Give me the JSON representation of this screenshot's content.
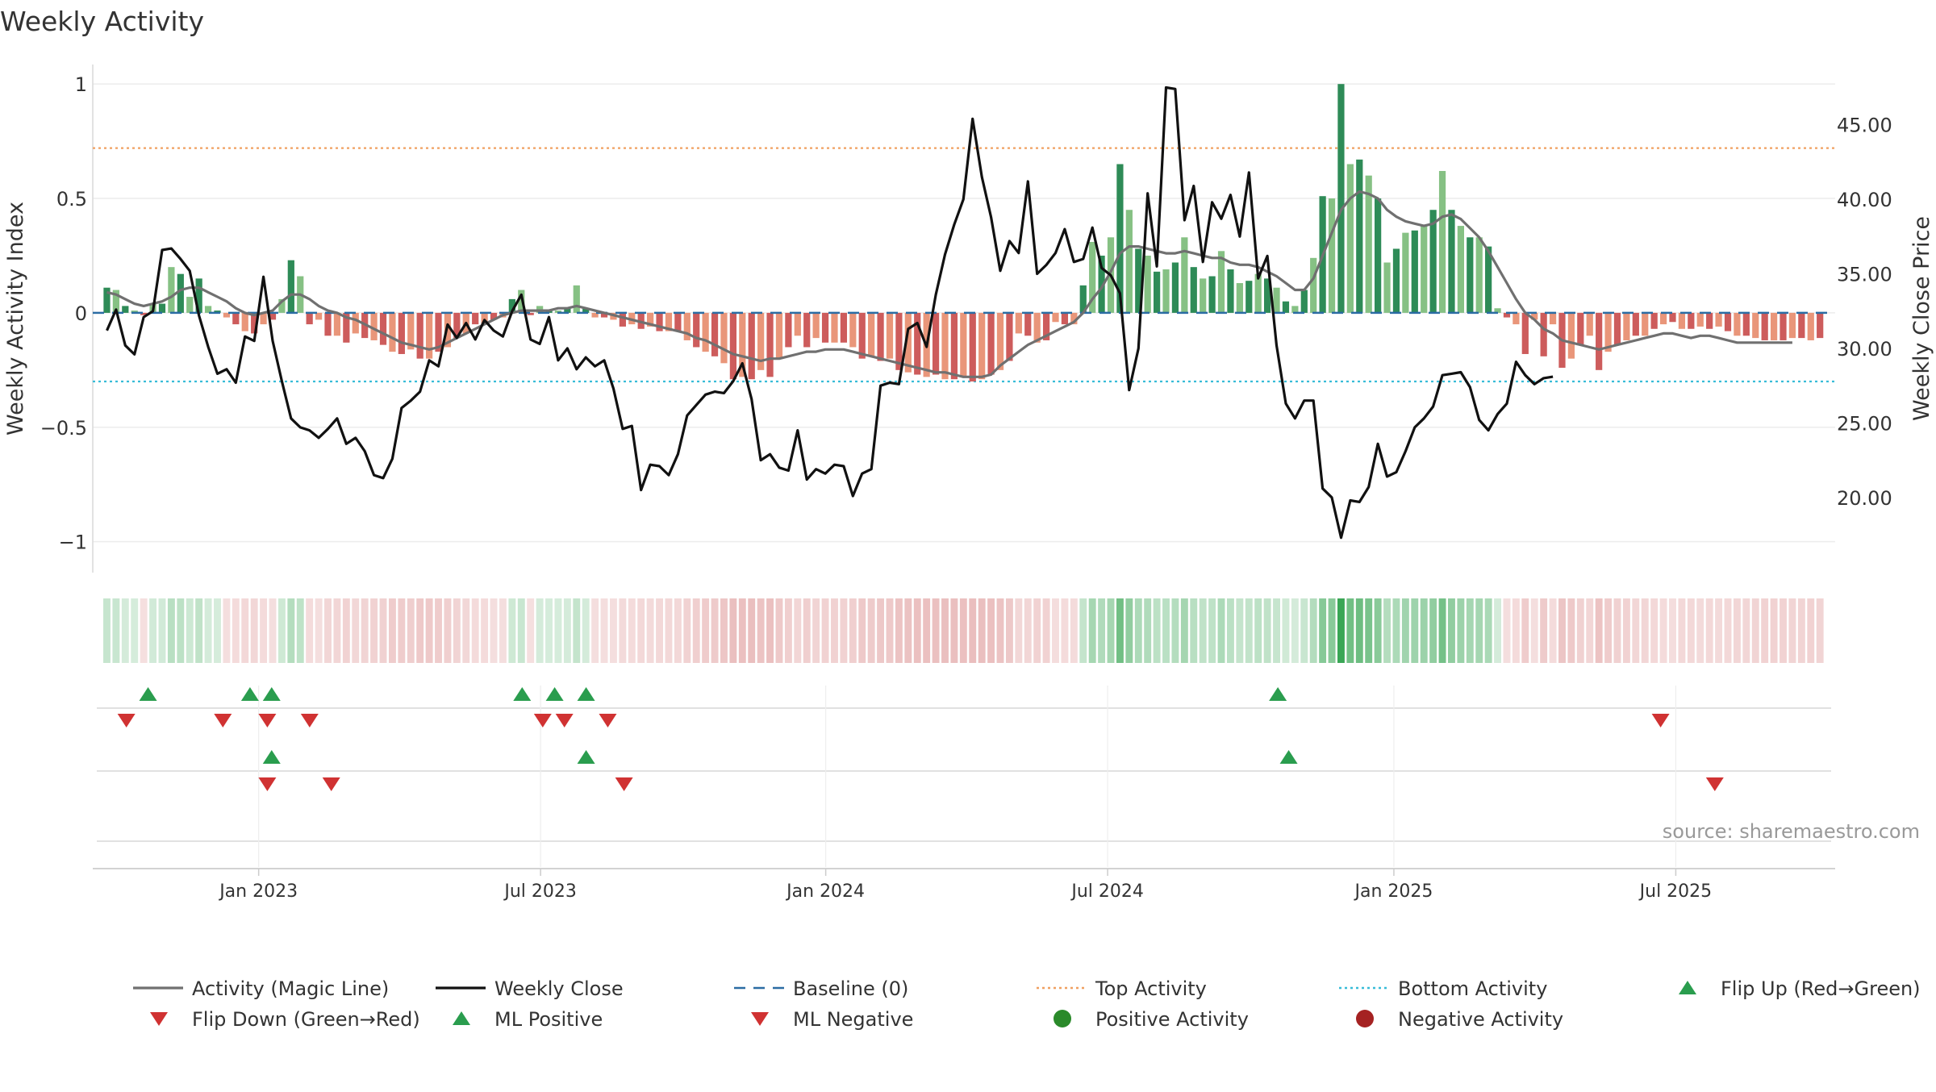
{
  "chart_data": {
    "type": "bar",
    "title": "Weekly Activity",
    "ylabel_left": "Weekly Activity Index",
    "ylabel_right": "Weekly Close Price",
    "source": "source: sharemaestro.com",
    "y_left_range": [
      -1.1,
      1.05
    ],
    "y_left_ticks": [
      1,
      0.5,
      0,
      -0.5,
      -1
    ],
    "y_left_tick_labels": [
      "1",
      "0.5",
      "0",
      "−0.5",
      "−1"
    ],
    "y_right_range": [
      15.5,
      48.5
    ],
    "y_right_ticks": [
      45,
      40,
      35,
      30,
      25,
      20
    ],
    "y_right_tick_labels": [
      "45.00",
      "40.00",
      "35.00",
      "30.00",
      "25.00",
      "20.00"
    ],
    "x_range_weeks": [
      -17.3,
      143.4
    ],
    "x_ticks": [
      {
        "label": "Jan 2023",
        "week": -2
      },
      {
        "label": "Jul 2023",
        "week": 24
      },
      {
        "label": "Jan 2024",
        "week": 50.3
      },
      {
        "label": "Jul 2024",
        "week": 76.3
      },
      {
        "label": "Jan 2025",
        "week": 102.7
      },
      {
        "label": "Jul 2025",
        "week": 128.7
      }
    ],
    "top_activity": 0.72,
    "bottom_activity": -0.3,
    "baseline": 0,
    "activity_values": [
      0.11,
      0.1,
      0.03,
      0.01,
      -0.01,
      0.04,
      0.04,
      0.2,
      0.17,
      0.07,
      0.15,
      0.03,
      0.01,
      -0.02,
      -0.05,
      -0.08,
      -0.09,
      -0.05,
      -0.03,
      0.06,
      0.23,
      0.16,
      -0.05,
      -0.03,
      -0.1,
      -0.1,
      -0.13,
      -0.09,
      -0.11,
      -0.12,
      -0.14,
      -0.17,
      -0.18,
      -0.16,
      -0.2,
      -0.2,
      -0.17,
      -0.15,
      -0.11,
      -0.09,
      -0.05,
      -0.05,
      -0.03,
      -0.02,
      0.06,
      0.1,
      -0.01,
      0.03,
      0.01,
      0.01,
      0.02,
      0.12,
      0.02,
      -0.02,
      -0.02,
      -0.03,
      -0.06,
      -0.05,
      -0.07,
      -0.06,
      -0.08,
      -0.08,
      -0.08,
      -0.12,
      -0.15,
      -0.17,
      -0.19,
      -0.22,
      -0.29,
      -0.28,
      -0.29,
      -0.25,
      -0.28,
      -0.2,
      -0.15,
      -0.1,
      -0.15,
      -0.11,
      -0.13,
      -0.13,
      -0.13,
      -0.15,
      -0.2,
      -0.19,
      -0.21,
      -0.2,
      -0.25,
      -0.26,
      -0.27,
      -0.28,
      -0.27,
      -0.29,
      -0.29,
      -0.28,
      -0.3,
      -0.29,
      -0.27,
      -0.25,
      -0.21,
      -0.09,
      -0.1,
      -0.13,
      -0.12,
      -0.04,
      -0.05,
      -0.05,
      0.12,
      0.31,
      0.25,
      0.33,
      0.65,
      0.45,
      0.28,
      0.25,
      0.18,
      0.19,
      0.22,
      0.33,
      0.2,
      0.15,
      0.16,
      0.27,
      0.19,
      0.13,
      0.14,
      0.17,
      0.15,
      0.11,
      0.05,
      0.03,
      0.1,
      0.24,
      0.51,
      0.5,
      1.0,
      0.65,
      0.67,
      0.6,
      0.5,
      0.22,
      0.28,
      0.35,
      0.36,
      0.38,
      0.45,
      0.62,
      0.45,
      0.38,
      0.33,
      0.33,
      0.29,
      0.02,
      -0.02,
      -0.05,
      -0.18,
      -0.03,
      -0.19,
      -0.05,
      -0.24,
      -0.2,
      -0.14,
      -0.1,
      -0.25,
      -0.17,
      -0.14,
      -0.12,
      -0.1,
      -0.1,
      -0.07,
      -0.05,
      -0.04,
      -0.07,
      -0.07,
      -0.06,
      -0.07,
      -0.06,
      -0.08,
      -0.1,
      -0.1,
      -0.11,
      -0.12,
      -0.12,
      -0.12,
      -0.11,
      -0.11,
      -0.12,
      -0.11
    ],
    "weekly_close": [
      31.2,
      32.6,
      30.2,
      29.6,
      32.1,
      32.5,
      36.6,
      36.7,
      36,
      35.2,
      32.2,
      30.1,
      28.3,
      28.6,
      27.7,
      30.8,
      30.5,
      34.8,
      30.5,
      27.8,
      25.3,
      24.7,
      24.5,
      24,
      24.6,
      25.3,
      23.6,
      24,
      23.1,
      21.5,
      21.3,
      22.6,
      26,
      26.5,
      27.1,
      29.2,
      28.8,
      31.6,
      30.7,
      31.7,
      30.6,
      31.9,
      31.2,
      30.8,
      32.5,
      33.6,
      30.6,
      30.3,
      32.1,
      29.2,
      30,
      28.6,
      29.4,
      28.8,
      29.2,
      27.3,
      24.6,
      24.8,
      20.5,
      22.2,
      22.1,
      21.5,
      22.9,
      25.5,
      26.2,
      26.9,
      27.1,
      27,
      27.8,
      29,
      26.6,
      22.5,
      22.9,
      22,
      21.8,
      24.5,
      21.2,
      21.9,
      21.6,
      22.2,
      22.1,
      20.1,
      21.6,
      21.9,
      27.5,
      27.7,
      27.6,
      31.3,
      31.7,
      30.1,
      33.6,
      36.3,
      38.3,
      40,
      45.4,
      41.5,
      38.8,
      35.2,
      37.2,
      36.4,
      41.2,
      35,
      35.6,
      36.4,
      38,
      35.8,
      36,
      38.1,
      35.4,
      34.9,
      33.7,
      27.2,
      30,
      40.4,
      35.5,
      47.5,
      47.4,
      38.6,
      40.9,
      35.8,
      39.8,
      38.7,
      40.3,
      37.5,
      41.8,
      34.7,
      36.2,
      30.2,
      26.3,
      25.3,
      26.5,
      26.5,
      20.6,
      20,
      17.3,
      19.8,
      19.7,
      20.7,
      23.6,
      21.4,
      21.7,
      23.1,
      24.7,
      25.3,
      26.1,
      28.2,
      28.3,
      28.4,
      27.4,
      25.2,
      24.5,
      25.6,
      26.3,
      29.1,
      28.2,
      27.6,
      28,
      28.1
    ],
    "magic_line": [
      0.09,
      0.08,
      0.06,
      0.04,
      0.03,
      0.04,
      0.05,
      0.07,
      0.1,
      0.11,
      0.11,
      0.09,
      0.07,
      0.05,
      0.02,
      0,
      -0.01,
      0,
      0.01,
      0.05,
      0.08,
      0.08,
      0.06,
      0.03,
      0.01,
      0,
      -0.02,
      -0.03,
      -0.05,
      -0.07,
      -0.09,
      -0.11,
      -0.13,
      -0.14,
      -0.15,
      -0.16,
      -0.15,
      -0.13,
      -0.11,
      -0.09,
      -0.07,
      -0.05,
      -0.03,
      -0.01,
      0,
      0.01,
      0.01,
      0.01,
      0.01,
      0.02,
      0.02,
      0.03,
      0.02,
      0.01,
      0,
      -0.01,
      -0.02,
      -0.03,
      -0.04,
      -0.05,
      -0.06,
      -0.07,
      -0.08,
      -0.09,
      -0.11,
      -0.12,
      -0.14,
      -0.16,
      -0.18,
      -0.19,
      -0.2,
      -0.21,
      -0.2,
      -0.2,
      -0.19,
      -0.18,
      -0.17,
      -0.17,
      -0.16,
      -0.16,
      -0.16,
      -0.17,
      -0.18,
      -0.19,
      -0.2,
      -0.21,
      -0.22,
      -0.23,
      -0.24,
      -0.25,
      -0.26,
      -0.26,
      -0.27,
      -0.28,
      -0.28,
      -0.28,
      -0.27,
      -0.23,
      -0.2,
      -0.17,
      -0.14,
      -0.12,
      -0.1,
      -0.08,
      -0.06,
      -0.04,
      0,
      0.06,
      0.11,
      0.18,
      0.26,
      0.29,
      0.29,
      0.28,
      0.27,
      0.26,
      0.26,
      0.27,
      0.26,
      0.25,
      0.24,
      0.24,
      0.22,
      0.21,
      0.21,
      0.2,
      0.18,
      0.16,
      0.13,
      0.1,
      0.1,
      0.15,
      0.25,
      0.35,
      0.45,
      0.5,
      0.53,
      0.52,
      0.5,
      0.45,
      0.42,
      0.4,
      0.39,
      0.38,
      0.39,
      0.42,
      0.43,
      0.41,
      0.37,
      0.33,
      0.27,
      0.2,
      0.13,
      0.06,
      0,
      -0.03,
      -0.07,
      -0.09,
      -0.12,
      -0.13,
      -0.14,
      -0.15,
      -0.16,
      -0.15,
      -0.14,
      -0.13,
      -0.12,
      -0.11,
      -0.1,
      -0.09,
      -0.09,
      -0.1,
      -0.11,
      -0.1,
      -0.1,
      -0.11,
      -0.12,
      -0.13,
      -0.13,
      -0.13,
      -0.13,
      -0.13,
      -0.13,
      -0.13
    ],
    "markers": {
      "row1_flip_up_weeks": [
        -12.2,
        -2.8,
        -0.8,
        22.3,
        25.3,
        28.2,
        92
      ],
      "row1_flip_down_weeks": [
        -14.2,
        -5.3,
        -1.2,
        2.7,
        24.2,
        26.2,
        30.2,
        127.3
      ],
      "row2_ml_positive_weeks": [
        -0.8,
        28.2,
        93
      ],
      "row2_ml_negative_weeks": [
        -1.2,
        4.7,
        31.7,
        132.3
      ]
    },
    "legend": [
      {
        "label": "Activity (Magic Line)",
        "symbol": "line",
        "color": "#707070"
      },
      {
        "label": "Weekly Close",
        "symbol": "line",
        "color": "#111111"
      },
      {
        "label": "Baseline (0)",
        "symbol": "dashed",
        "color": "#2b6ca3"
      },
      {
        "label": "Top Activity",
        "symbol": "dotted",
        "color": "#f0a060"
      },
      {
        "label": "Bottom Activity",
        "symbol": "dotted",
        "color": "#38bcd8"
      },
      {
        "label": "Flip Up (Red→Green)",
        "symbol": "triangle-up",
        "color": "#2a9d4e"
      },
      {
        "label": "Flip Down (Green→Red)",
        "symbol": "triangle-down",
        "color": "#d03232"
      },
      {
        "label": "ML Positive",
        "symbol": "triangle-up",
        "color": "#2a9d4e"
      },
      {
        "label": "ML Negative",
        "symbol": "triangle-down",
        "color": "#d03232"
      },
      {
        "label": "Positive Activity",
        "symbol": "circle",
        "color": "#2a8a2a"
      },
      {
        "label": "Negative Activity",
        "symbol": "circle",
        "color": "#a52222"
      }
    ],
    "colors": {
      "pos_strong": "#2e8b57",
      "pos_light": "#86c184",
      "neg_strong": "#cd5c5c",
      "neg_light": "#e9967a",
      "strip_pos": "#3aa655",
      "strip_neg": "#cf6a6a"
    }
  }
}
